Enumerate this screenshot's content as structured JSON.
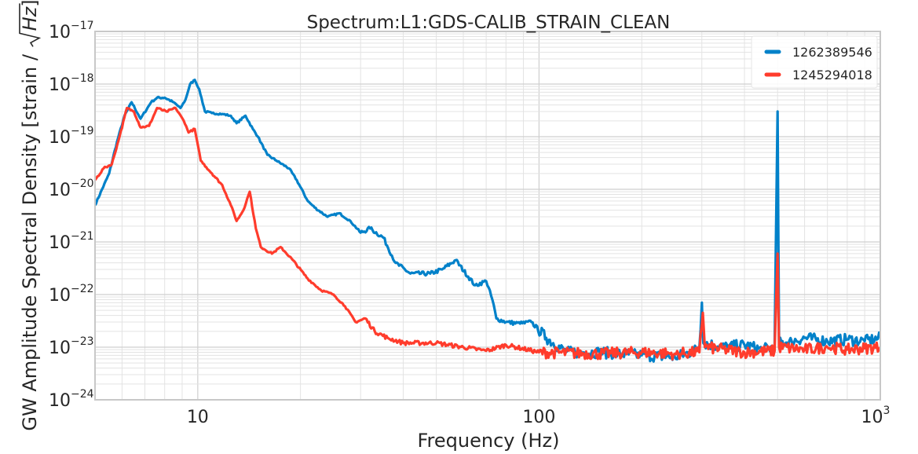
{
  "chart_data": {
    "type": "line",
    "title": "Spectrum:L1:GDS-CALIB_STRAIN_CLEAN",
    "xlabel": "Frequency (Hz)",
    "ylabel_prefix": "GW Amplitude Spectral Density [strain / ",
    "ylabel_radicand": "Hz",
    "ylabel_suffix": "]",
    "x_scale": "log",
    "y_scale": "log",
    "xlim": [
      5,
      1000
    ],
    "ylim": [
      1e-24,
      1e-17
    ],
    "x_ticks": [
      {
        "value": 10,
        "label": "10",
        "exp": ""
      },
      {
        "value": 100,
        "label": "100",
        "exp": ""
      },
      {
        "value": 1000,
        "label": "10",
        "exp": "3"
      }
    ],
    "y_ticks": [
      {
        "value": 1e-24,
        "base": "10",
        "exp": "−24"
      },
      {
        "value": 1e-23,
        "base": "10",
        "exp": "−23"
      },
      {
        "value": 1e-22,
        "base": "10",
        "exp": "−22"
      },
      {
        "value": 1e-21,
        "base": "10",
        "exp": "−21"
      },
      {
        "value": 1e-20,
        "base": "10",
        "exp": "−20"
      },
      {
        "value": 1e-19,
        "base": "10",
        "exp": "−19"
      },
      {
        "value": 1e-18,
        "base": "10",
        "exp": "−18"
      },
      {
        "value": 1e-17,
        "base": "10",
        "exp": "−17"
      }
    ],
    "grid": true,
    "legend_position": "top-right",
    "series": [
      {
        "name": "1262389546",
        "color": "#0081c9",
        "points": [
          [
            5,
            5e-21
          ],
          [
            5.5,
            2e-20
          ],
          [
            5.8,
            8e-20
          ],
          [
            6.1,
            2.5e-19
          ],
          [
            6.4,
            4.5e-19
          ],
          [
            6.8,
            2.2e-19
          ],
          [
            7.3,
            4.5e-19
          ],
          [
            7.6,
            5.5e-19
          ],
          [
            8.0,
            5.5e-19
          ],
          [
            8.5,
            4.5e-19
          ],
          [
            8.9,
            3.5e-19
          ],
          [
            9.2,
            5e-19
          ],
          [
            9.5,
            1e-18
          ],
          [
            9.8,
            1.2e-18
          ],
          [
            10.1,
            8e-19
          ],
          [
            10.5,
            3e-19
          ],
          [
            11,
            2.8e-19
          ],
          [
            11.8,
            2.7e-19
          ],
          [
            12.5,
            2.5e-19
          ],
          [
            13,
            1.8e-19
          ],
          [
            13.8,
            2.5e-19
          ],
          [
            14.5,
            1.4e-19
          ],
          [
            15,
            1e-19
          ],
          [
            16,
            4.5e-20
          ],
          [
            17,
            3.5e-20
          ],
          [
            18.5,
            2.5e-20
          ],
          [
            19.5,
            1.5e-20
          ],
          [
            21,
            6e-21
          ],
          [
            22,
            4.5e-21
          ],
          [
            24,
            3e-21
          ],
          [
            26,
            3.5e-21
          ],
          [
            28,
            2.5e-21
          ],
          [
            30,
            1.5e-21
          ],
          [
            32,
            1.8e-21
          ],
          [
            35,
            1.2e-21
          ],
          [
            38,
            4e-22
          ],
          [
            42,
            2.5e-22
          ],
          [
            48,
            2.5e-22
          ],
          [
            52,
            3e-22
          ],
          [
            57,
            4.5e-22
          ],
          [
            62,
            2.2e-22
          ],
          [
            65,
            1.5e-22
          ],
          [
            70,
            1.8e-22
          ],
          [
            73,
            8e-23
          ],
          [
            75,
            3.5e-23
          ],
          [
            80,
            3e-23
          ],
          [
            88,
            2.8e-23
          ],
          [
            95,
            3e-23
          ],
          [
            105,
            1.5e-23
          ],
          [
            120,
            8e-24
          ],
          [
            150,
            8e-24
          ],
          [
            200,
            7e-24
          ],
          [
            250,
            6.5e-24
          ],
          [
            280,
            8e-24
          ],
          [
            295,
            1e-23
          ],
          [
            300,
            7e-23
          ],
          [
            303,
            1.2e-23
          ],
          [
            350,
            1e-23
          ],
          [
            400,
            1.1e-23
          ],
          [
            450,
            9e-24
          ],
          [
            490,
            1e-23
          ],
          [
            500,
            3e-19
          ],
          [
            505,
            1.2e-23
          ],
          [
            550,
            1.3e-23
          ],
          [
            600,
            1.5e-23
          ],
          [
            700,
            1.3e-23
          ],
          [
            800,
            1.4e-23
          ],
          [
            900,
            1.3e-23
          ],
          [
            1000,
            1.5e-23
          ]
        ]
      },
      {
        "name": "1245294018",
        "color": "#ff3c2c",
        "points": [
          [
            5,
            1.5e-20
          ],
          [
            5.3,
            2.5e-20
          ],
          [
            5.6,
            3e-20
          ],
          [
            5.9,
            1e-19
          ],
          [
            6.2,
            3.5e-19
          ],
          [
            6.5,
            3e-19
          ],
          [
            6.8,
            1.5e-19
          ],
          [
            7.2,
            1.6e-19
          ],
          [
            7.6,
            3.5e-19
          ],
          [
            8.1,
            3e-19
          ],
          [
            8.6,
            3.5e-19
          ],
          [
            9.1,
            2e-19
          ],
          [
            9.4,
            1.2e-19
          ],
          [
            9.8,
            1.4e-19
          ],
          [
            10.2,
            3.5e-20
          ],
          [
            11,
            2e-20
          ],
          [
            11.8,
            1.2e-20
          ],
          [
            12.5,
            5e-21
          ],
          [
            13,
            2.5e-21
          ],
          [
            13.6,
            4e-21
          ],
          [
            14.2,
            9e-21
          ],
          [
            14.8,
            1.8e-21
          ],
          [
            15.3,
            8e-22
          ],
          [
            16.5,
            6e-22
          ],
          [
            17.5,
            8e-22
          ],
          [
            19,
            4.5e-22
          ],
          [
            21,
            2e-22
          ],
          [
            23,
            1.2e-22
          ],
          [
            25,
            1e-22
          ],
          [
            27,
            6e-23
          ],
          [
            29,
            3e-23
          ],
          [
            31,
            3.5e-23
          ],
          [
            33,
            2e-23
          ],
          [
            36,
            1.5e-23
          ],
          [
            40,
            1.2e-23
          ],
          [
            50,
            1.2e-23
          ],
          [
            60,
            1e-23
          ],
          [
            70,
            8.5e-24
          ],
          [
            80,
            1.1e-23
          ],
          [
            100,
            8e-24
          ],
          [
            150,
            7.5e-24
          ],
          [
            200,
            8e-24
          ],
          [
            250,
            7.5e-24
          ],
          [
            295,
            8e-24
          ],
          [
            302,
            4.5e-23
          ],
          [
            306,
            1e-23
          ],
          [
            400,
            8e-24
          ],
          [
            490,
            8.5e-24
          ],
          [
            500,
            6e-22
          ],
          [
            505,
            1e-23
          ],
          [
            600,
            9e-24
          ],
          [
            700,
            1e-23
          ],
          [
            800,
            9e-24
          ],
          [
            900,
            9.5e-24
          ],
          [
            1000,
            1e-23
          ]
        ]
      }
    ]
  }
}
